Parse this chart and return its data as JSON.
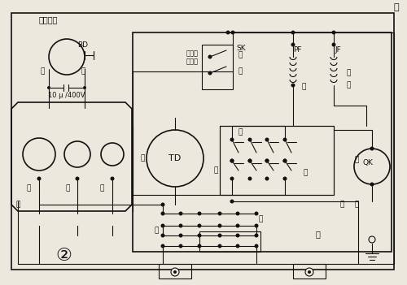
{
  "bg_color": "#ede8dd",
  "line_color": "#111111",
  "fig_width": 5.0,
  "fig_height": 3.51,
  "dpi": 100,
  "labels": {
    "bofendianji": "波轮电机",
    "BD": "BD",
    "bai_l": "白",
    "huang_l": "黄",
    "cap_label": "10 μ /400V",
    "zi": "紫",
    "lv": "绿",
    "huang_bl": "黄",
    "lan_l": "蓝",
    "TD": "TD",
    "huang_m": "黄",
    "bupai": "不排水",
    "quanchengxu": "全程序",
    "SK": "SK",
    "bai_sk": "白",
    "huang_sk": "黄",
    "PF": "PF",
    "JF": "JF",
    "hei": "黑",
    "zong": "棕",
    "bai_r": "白",
    "huang_qk": "黄",
    "QK": "QK",
    "hong_top": "红",
    "hong_m": "红",
    "shang": "上",
    "xia_r": "下",
    "xia_b": "下",
    "lan_b": "蓝",
    "bai_b": "白",
    "huang_br": "黄",
    "label2": "②"
  }
}
